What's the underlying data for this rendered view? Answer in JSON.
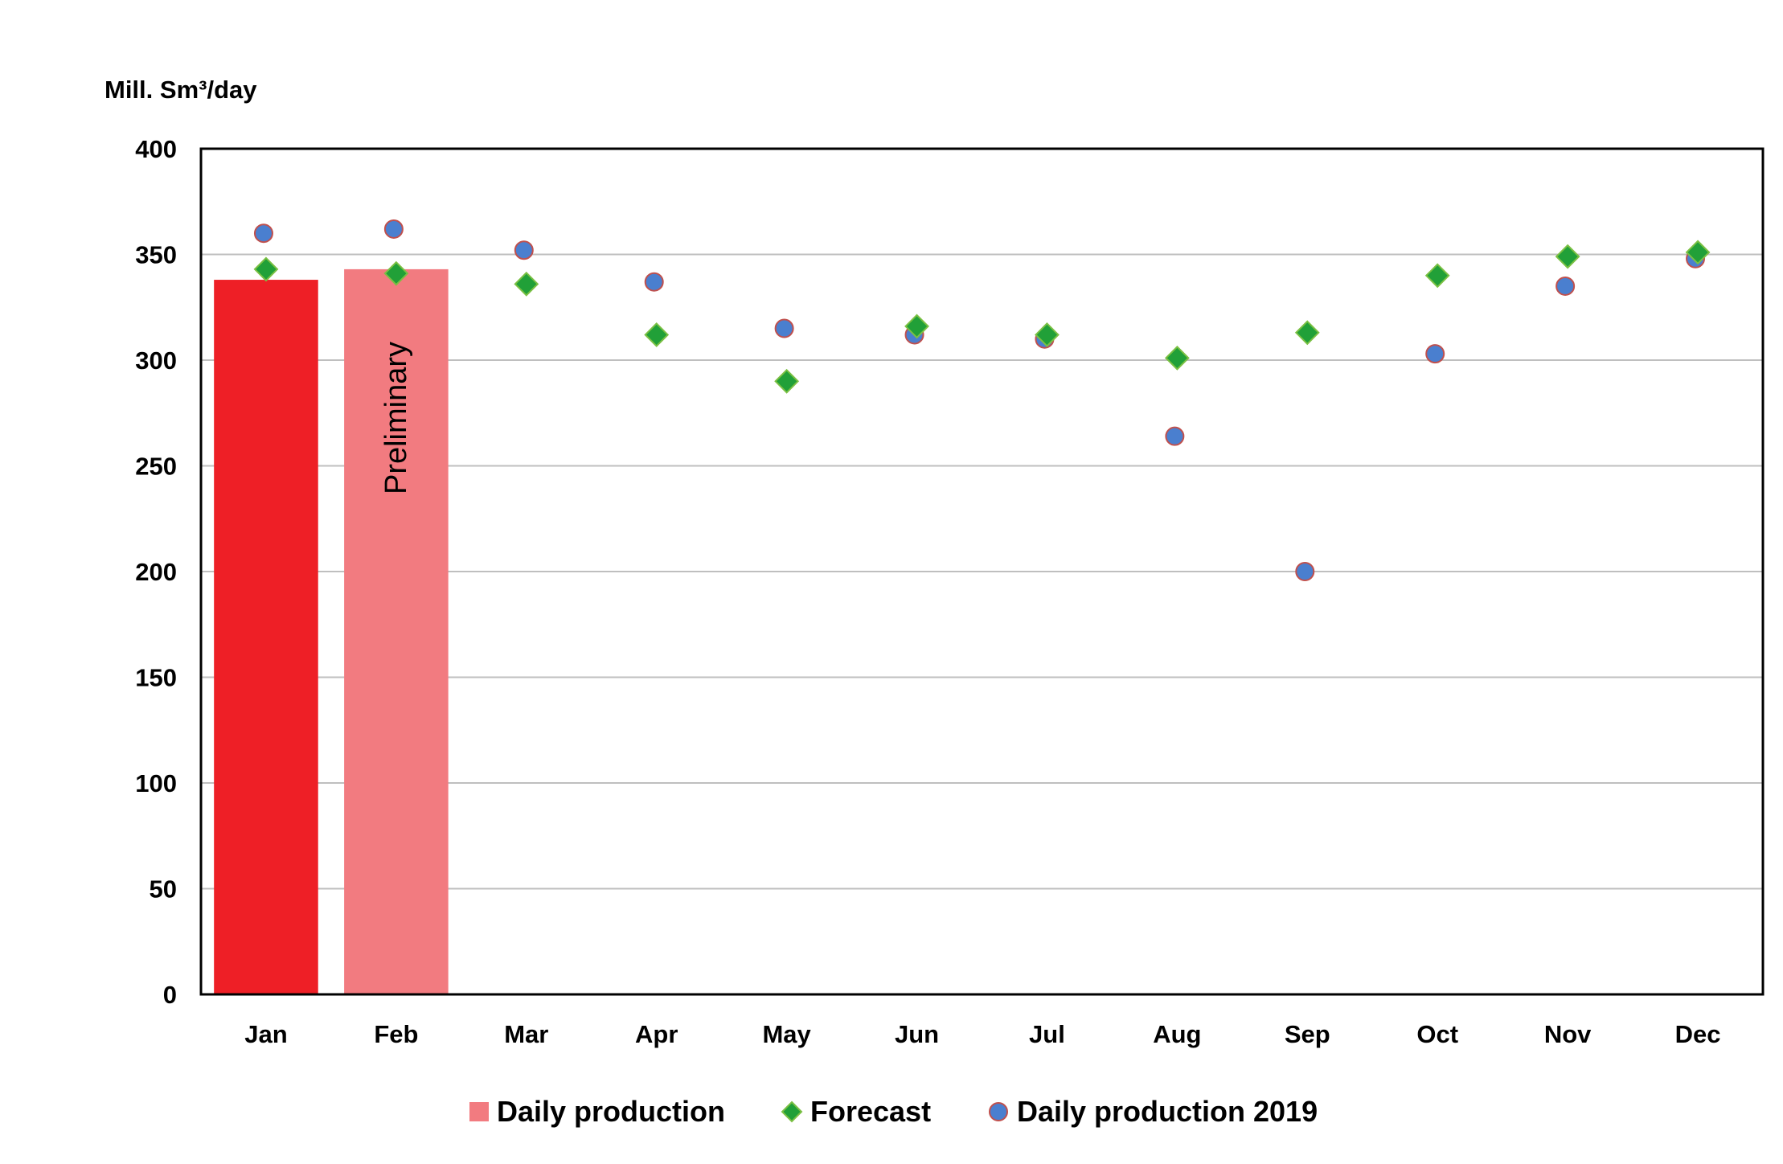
{
  "chart_data": {
    "type": "bar",
    "ylabel": "Mill. Sm³/day",
    "ylim": [
      0,
      400
    ],
    "yticks": [
      0,
      50,
      100,
      150,
      200,
      250,
      300,
      350,
      400
    ],
    "categories": [
      "Jan",
      "Feb",
      "Mar",
      "Apr",
      "May",
      "Jun",
      "Jul",
      "Aug",
      "Sep",
      "Oct",
      "Nov",
      "Dec"
    ],
    "grid": true,
    "legend_position": "bottom",
    "series": [
      {
        "name": "Daily production",
        "kind": "bar",
        "values": [
          338,
          343,
          null,
          null,
          null,
          null,
          null,
          null,
          null,
          null,
          null,
          null
        ],
        "colors": [
          "#ee1f26",
          "#f27b80"
        ]
      },
      {
        "name": "Forecast",
        "kind": "marker-diamond",
        "values": [
          343,
          341,
          336,
          312,
          290,
          316,
          312,
          301,
          313,
          340,
          349,
          351
        ],
        "color": "#21a038",
        "edge_color": "#7bc043"
      },
      {
        "name": "Daily production 2019",
        "kind": "marker-circle",
        "values": [
          360,
          362,
          352,
          337,
          315,
          312,
          310,
          264,
          200,
          303,
          335,
          348
        ],
        "color": "#4a7fcf",
        "edge_color": "#c0504d"
      }
    ],
    "annotations": [
      {
        "text": "Preliminary",
        "category": "Feb",
        "orientation": "vertical"
      }
    ]
  }
}
